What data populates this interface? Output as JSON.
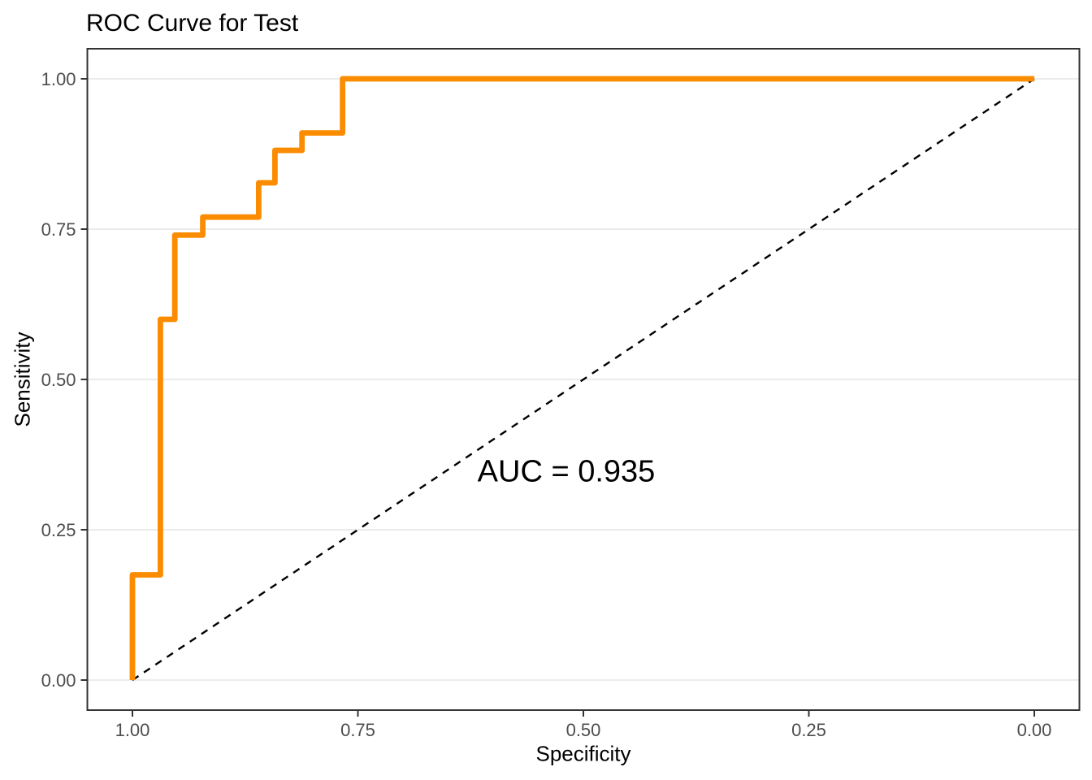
{
  "chart_data": {
    "type": "line",
    "subtype": "roc-step-curve",
    "title": "ROC Curve for Test",
    "xlabel": "Specificity",
    "ylabel": "Sensitivity",
    "x_tick_labels": [
      "1.00",
      "0.75",
      "0.50",
      "0.25",
      "0.00"
    ],
    "x_tick_values": [
      1.0,
      0.75,
      0.5,
      0.25,
      0.0
    ],
    "y_tick_labels": [
      "0.00",
      "0.25",
      "0.50",
      "0.75",
      "1.00"
    ],
    "y_tick_values": [
      0.0,
      0.25,
      0.5,
      0.75,
      1.0
    ],
    "xlim": [
      1.0,
      0.0
    ],
    "ylim": [
      0.0,
      1.0
    ],
    "x_axis_reversed": true,
    "grid": "horizontal-major-only",
    "legend": "none",
    "annotation": {
      "text": "AUC = 0.935",
      "auc_value": 0.935,
      "x_specificity": 0.52,
      "y_sensitivity": 0.345
    },
    "series": [
      {
        "name": "ROC curve",
        "style": "step-solid",
        "color": "#FB8C00",
        "stroke_width": 6.8,
        "points_spec_sens": [
          [
            1.0,
            0.0
          ],
          [
            1.0,
            0.175
          ],
          [
            0.969,
            0.175
          ],
          [
            0.969,
            0.6
          ],
          [
            0.953,
            0.6
          ],
          [
            0.953,
            0.74
          ],
          [
            0.922,
            0.74
          ],
          [
            0.922,
            0.77
          ],
          [
            0.86,
            0.77
          ],
          [
            0.86,
            0.827
          ],
          [
            0.842,
            0.827
          ],
          [
            0.842,
            0.881
          ],
          [
            0.812,
            0.881
          ],
          [
            0.812,
            0.91
          ],
          [
            0.767,
            0.91
          ],
          [
            0.767,
            1.0
          ],
          [
            0.0,
            1.0
          ]
        ]
      },
      {
        "name": "chance diagonal",
        "style": "dashed",
        "color": "#000000",
        "stroke_width": 2.4,
        "points_spec_sens": [
          [
            1.0,
            0.0
          ],
          [
            0.0,
            1.0
          ]
        ]
      }
    ]
  },
  "colors": {
    "curve": "#FB8C00",
    "diagonal": "#000000",
    "gridline": "#EBEBEB",
    "panel_border": "#333333",
    "tick_mark": "#333333",
    "tick_label": "#4D4D4D",
    "text": "#000000",
    "background": "#FFFFFF"
  }
}
